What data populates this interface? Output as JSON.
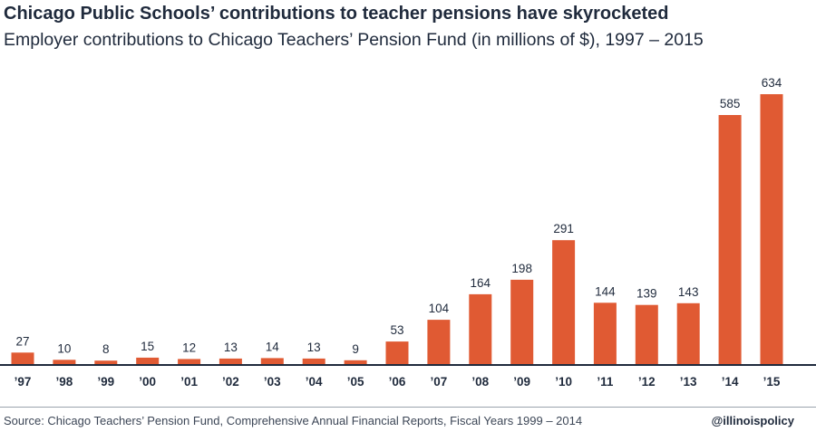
{
  "chart_data": {
    "type": "bar",
    "title": "Chicago Public Schools’ contributions to teacher pensions have skyrocketed",
    "subtitle": "Employer contributions to Chicago Teachers’ Pension Fund (in millions of $), 1997 – 2015",
    "categories": [
      "’97",
      "’98",
      "’99",
      "’00",
      "’01",
      "’02",
      "’03",
      "’04",
      "’05",
      "’06",
      "’07",
      "’08",
      "’09",
      "’10",
      "’11",
      "’12",
      "’13",
      "’14",
      "’15"
    ],
    "values": [
      27,
      10,
      8,
      15,
      12,
      13,
      14,
      13,
      9,
      53,
      104,
      164,
      198,
      291,
      144,
      139,
      143,
      585,
      634
    ],
    "ylim": [
      0,
      634
    ],
    "grid": false,
    "bar_color": "#e05a33",
    "axis_color": "#1f2a3c"
  },
  "footer": {
    "source": "Source: Chicago Teachers’ Pension Fund, Comprehensive Annual Financial Reports, Fiscal Years 1999 – 2014",
    "handle": "@illinoispolicy"
  }
}
